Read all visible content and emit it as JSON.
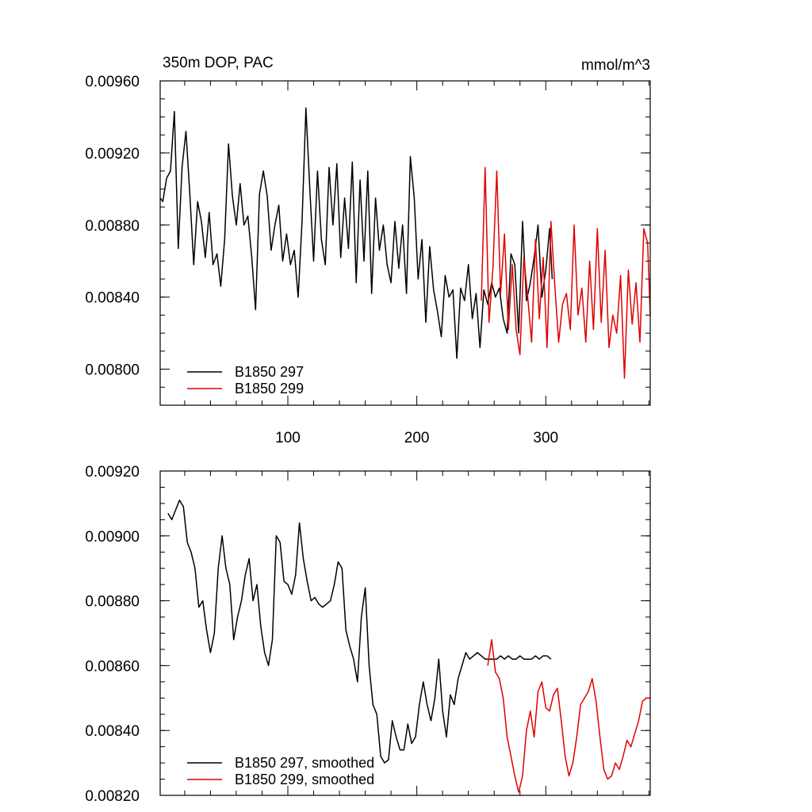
{
  "chart_data": [
    {
      "type": "line",
      "title": "350m DOP, PAC",
      "units": "mmol/m^3",
      "xlabel": "",
      "ylabel": "",
      "xlim": [
        1,
        381
      ],
      "ylim": [
        0.0078,
        0.0096
      ],
      "x_ticks": [
        100,
        200,
        300
      ],
      "y_ticks": [
        "0.00800",
        "0.00840",
        "0.00880",
        "0.00920",
        "0.00960"
      ],
      "legend_position": "bottom-left",
      "series": [
        {
          "name": "B1850 297",
          "color": "#000000",
          "x": [
            1,
            3,
            6,
            9,
            12,
            15,
            18,
            21,
            24,
            27,
            30,
            33,
            36,
            39,
            42,
            45,
            48,
            51,
            54,
            57,
            60,
            63,
            66,
            69,
            72,
            75,
            78,
            81,
            84,
            87,
            90,
            93,
            96,
            99,
            102,
            105,
            108,
            111,
            114,
            117,
            120,
            123,
            126,
            129,
            132,
            135,
            138,
            141,
            144,
            147,
            150,
            153,
            156,
            159,
            162,
            165,
            168,
            171,
            174,
            177,
            180,
            183,
            186,
            189,
            192,
            195,
            198,
            201,
            204,
            207,
            210,
            213,
            216,
            219,
            222,
            225,
            228,
            231,
            234,
            237,
            240,
            243,
            246,
            249,
            252,
            255,
            258,
            261,
            264,
            267,
            270,
            273,
            276,
            279,
            282,
            285,
            288,
            291,
            294,
            297,
            300,
            303,
            305
          ],
          "values": [
            0.00895,
            0.00893,
            0.00906,
            0.0091,
            0.00943,
            0.00867,
            0.00912,
            0.00932,
            0.00897,
            0.00858,
            0.00893,
            0.00882,
            0.00862,
            0.00887,
            0.00858,
            0.00864,
            0.00846,
            0.00872,
            0.00925,
            0.00896,
            0.0088,
            0.00903,
            0.0088,
            0.00885,
            0.00862,
            0.00833,
            0.00897,
            0.0091,
            0.00896,
            0.00866,
            0.0088,
            0.00891,
            0.0086,
            0.00875,
            0.00858,
            0.00866,
            0.0084,
            0.00882,
            0.00945,
            0.009,
            0.0086,
            0.0091,
            0.00872,
            0.00858,
            0.00912,
            0.0088,
            0.00914,
            0.00862,
            0.00895,
            0.00867,
            0.00915,
            0.00848,
            0.00905,
            0.0086,
            0.0091,
            0.00842,
            0.00895,
            0.00866,
            0.0088,
            0.00858,
            0.00848,
            0.00882,
            0.00856,
            0.0088,
            0.00842,
            0.00918,
            0.00895,
            0.0085,
            0.00872,
            0.00826,
            0.00868,
            0.00844,
            0.00832,
            0.00818,
            0.00852,
            0.0084,
            0.00844,
            0.00806,
            0.00845,
            0.00838,
            0.00858,
            0.00828,
            0.00842,
            0.00812,
            0.00844,
            0.00836,
            0.00848,
            0.0084,
            0.00845,
            0.00828,
            0.0082,
            0.00864,
            0.00858,
            0.0082,
            0.00882,
            0.00838,
            0.00848,
            0.00862,
            0.0088,
            0.0084,
            0.00855,
            0.00878,
            0.0085
          ]
        },
        {
          "name": "B1850 299",
          "color": "#e00000",
          "x": [
            250,
            253,
            256,
            259,
            262,
            265,
            268,
            271,
            274,
            277,
            280,
            283,
            286,
            289,
            292,
            295,
            298,
            301,
            304,
            307,
            310,
            313,
            316,
            319,
            322,
            325,
            328,
            331,
            334,
            337,
            340,
            343,
            346,
            349,
            352,
            355,
            358,
            361,
            364,
            367,
            370,
            373,
            376,
            379,
            381
          ],
          "values": [
            0.00838,
            0.00912,
            0.00826,
            0.00856,
            0.0091,
            0.00842,
            0.00875,
            0.00822,
            0.00858,
            0.00822,
            0.00808,
            0.00862,
            0.0084,
            0.00815,
            0.00872,
            0.00828,
            0.00862,
            0.00812,
            0.00882,
            0.00846,
            0.00815,
            0.00836,
            0.00842,
            0.00822,
            0.0088,
            0.0083,
            0.00845,
            0.00815,
            0.0086,
            0.00822,
            0.00878,
            0.00826,
            0.00866,
            0.00812,
            0.0083,
            0.0082,
            0.00852,
            0.00795,
            0.00855,
            0.00825,
            0.00848,
            0.00815,
            0.00878,
            0.0087,
            0.0083
          ]
        }
      ]
    },
    {
      "type": "line",
      "title": "",
      "xlabel": "",
      "ylabel": "",
      "xlim": [
        1,
        381
      ],
      "ylim": [
        0.0082,
        0.0092
      ],
      "y_ticks": [
        "0.00820",
        "0.00840",
        "0.00860",
        "0.00880",
        "0.00900",
        "0.00920"
      ],
      "legend_position": "bottom-left",
      "series": [
        {
          "name": "B1850 297, smoothed",
          "color": "#000000",
          "x": [
            7,
            10,
            13,
            16,
            19,
            22,
            25,
            28,
            31,
            34,
            37,
            40,
            43,
            46,
            49,
            52,
            55,
            58,
            61,
            64,
            67,
            70,
            73,
            76,
            79,
            82,
            85,
            88,
            91,
            94,
            97,
            100,
            103,
            106,
            109,
            112,
            115,
            118,
            121,
            124,
            127,
            130,
            133,
            136,
            139,
            142,
            145,
            148,
            151,
            154,
            157,
            160,
            163,
            166,
            169,
            172,
            175,
            178,
            181,
            184,
            187,
            190,
            193,
            196,
            199,
            202,
            205,
            208,
            211,
            214,
            217,
            220,
            223,
            226,
            229,
            232,
            235,
            238,
            241,
            244,
            247,
            250,
            253,
            256,
            259,
            262,
            265,
            268,
            271,
            274,
            277,
            280,
            283,
            286,
            289,
            292,
            295,
            298,
            301,
            304
          ],
          "values": [
            0.00907,
            0.00905,
            0.00908,
            0.00911,
            0.00909,
            0.00898,
            0.00895,
            0.0089,
            0.00878,
            0.0088,
            0.00871,
            0.00864,
            0.0087,
            0.0089,
            0.009,
            0.0089,
            0.00885,
            0.00868,
            0.00875,
            0.0088,
            0.00888,
            0.00893,
            0.0088,
            0.00885,
            0.00872,
            0.00864,
            0.0086,
            0.00868,
            0.009,
            0.00898,
            0.00886,
            0.00885,
            0.00882,
            0.00888,
            0.00904,
            0.00893,
            0.00886,
            0.0088,
            0.00881,
            0.00879,
            0.00878,
            0.00879,
            0.0088,
            0.00885,
            0.00892,
            0.0089,
            0.00871,
            0.00866,
            0.00862,
            0.00855,
            0.00875,
            0.00884,
            0.0086,
            0.00848,
            0.00845,
            0.00832,
            0.0083,
            0.00831,
            0.00843,
            0.00838,
            0.00834,
            0.00834,
            0.00842,
            0.00836,
            0.00838,
            0.00848,
            0.00855,
            0.00848,
            0.00843,
            0.0085,
            0.00862,
            0.00846,
            0.00838,
            0.00851,
            0.00848,
            0.00856,
            0.0086,
            0.00864,
            0.00862,
            0.00863,
            0.00864,
            0.00863,
            0.00862,
            0.00862,
            0.00862,
            0.00862,
            0.00863,
            0.00862,
            0.00863,
            0.00862,
            0.00862,
            0.00863,
            0.00862,
            0.00862,
            0.00862,
            0.00863,
            0.00862,
            0.00863,
            0.00863,
            0.00862
          ]
        },
        {
          "name": "B1850 299, smoothed",
          "color": "#e00000",
          "x": [
            255,
            258,
            261,
            264,
            267,
            270,
            273,
            276,
            279,
            282,
            285,
            288,
            291,
            294,
            297,
            300,
            303,
            306,
            309,
            312,
            315,
            318,
            321,
            324,
            327,
            330,
            333,
            336,
            339,
            342,
            345,
            348,
            351,
            354,
            357,
            360,
            363,
            366,
            369,
            372,
            375,
            378,
            381
          ],
          "values": [
            0.0086,
            0.00868,
            0.00858,
            0.00856,
            0.0085,
            0.00838,
            0.00832,
            0.00826,
            0.00821,
            0.00826,
            0.0084,
            0.00846,
            0.00838,
            0.00852,
            0.00855,
            0.00847,
            0.00846,
            0.00851,
            0.00853,
            0.00843,
            0.00832,
            0.00826,
            0.0083,
            0.00838,
            0.00848,
            0.0085,
            0.00852,
            0.00856,
            0.00849,
            0.00838,
            0.00828,
            0.00825,
            0.00826,
            0.0083,
            0.00828,
            0.00832,
            0.00837,
            0.00835,
            0.00839,
            0.00843,
            0.00849,
            0.0085,
            0.0085
          ]
        }
      ]
    }
  ]
}
